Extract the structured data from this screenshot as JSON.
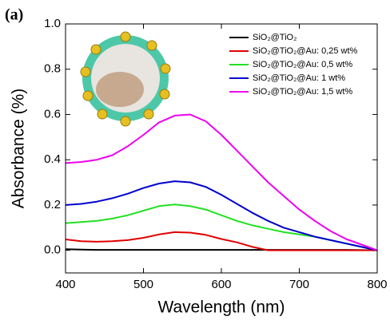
{
  "chart_data": {
    "type": "line",
    "panel_label": "(a)",
    "x_label": "Wavelength (nm)",
    "y_label": "Absorbance (%)",
    "x": [
      400,
      420,
      440,
      460,
      480,
      500,
      520,
      540,
      560,
      580,
      600,
      620,
      640,
      660,
      680,
      700,
      720,
      740,
      760,
      780,
      800
    ],
    "series": [
      {
        "name": "SiO₂@TiO₂",
        "color": "#000000",
        "values": [
          0.005,
          0.003,
          0.002,
          0.002,
          0.002,
          0.002,
          0.002,
          0.002,
          0.002,
          0.002,
          0.002,
          0.002,
          0.002,
          0.002,
          0.002,
          0.002,
          0.002,
          0.002,
          0.002,
          0.001,
          0
        ]
      },
      {
        "name": "SiO₂@TiO₂@Au: 0,25 wt%",
        "color": "#e00000",
        "values": [
          0.048,
          0.04,
          0.038,
          0.04,
          0.045,
          0.055,
          0.07,
          0.08,
          0.078,
          0.068,
          0.05,
          0.035,
          0.015,
          0,
          0,
          0,
          0,
          0,
          0,
          0,
          0
        ]
      },
      {
        "name": "SiO₂@TiO₂@Au: 0,5 wt%",
        "color": "#22e022",
        "values": [
          0.12,
          0.125,
          0.13,
          0.14,
          0.155,
          0.175,
          0.195,
          0.202,
          0.195,
          0.18,
          0.155,
          0.13,
          0.11,
          0.095,
          0.08,
          0.07,
          0.06,
          0.045,
          0.03,
          0.015,
          0
        ]
      },
      {
        "name": "SiO₂@TiO₂@Au: 1 wt%",
        "color": "#0000cc",
        "values": [
          0.2,
          0.205,
          0.215,
          0.23,
          0.25,
          0.275,
          0.295,
          0.305,
          0.3,
          0.28,
          0.245,
          0.205,
          0.165,
          0.13,
          0.1,
          0.08,
          0.06,
          0.045,
          0.03,
          0.015,
          0
        ]
      },
      {
        "name": "SiO₂@TiO₂@Au: 1,5 wt%",
        "color": "#ee00ee",
        "values": [
          0.385,
          0.39,
          0.4,
          0.42,
          0.46,
          0.51,
          0.565,
          0.595,
          0.6,
          0.57,
          0.51,
          0.44,
          0.37,
          0.3,
          0.24,
          0.18,
          0.13,
          0.085,
          0.05,
          0.025,
          0
        ]
      }
    ],
    "xlim": [
      400,
      800
    ],
    "ylim": [
      -0.1,
      1.0
    ],
    "xticks": [
      400,
      500,
      600,
      700,
      800
    ],
    "yticks": [
      {
        "value": 0,
        "label": "0.0"
      },
      0.2,
      0.4,
      0.6,
      0.8,
      {
        "value": 1,
        "label": "1.0"
      }
    ],
    "legend": "upper-right"
  }
}
